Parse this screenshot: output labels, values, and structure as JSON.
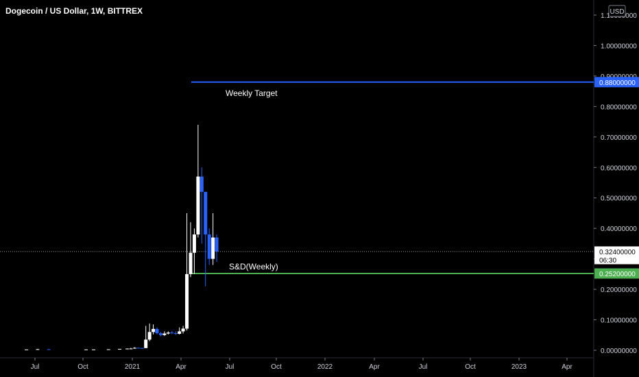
{
  "header": {
    "symbol_title": "Dogecoin / US Dollar, 1W, BITTREX",
    "currency_badge": "USD"
  },
  "countdown": "06:30",
  "chart_data": {
    "type": "candlestick",
    "y_axis": {
      "min": 0.0,
      "max": 1.1,
      "tick_labels": [
        "0.00000000",
        "0.10000000",
        "0.20000000",
        "0.30000000",
        "0.40000000",
        "0.50000000",
        "0.60000000",
        "0.70000000",
        "0.80000000",
        "0.90000000",
        "1.00000000",
        "1.10000000"
      ],
      "tick_values": [
        0,
        0.1,
        0.2,
        0.3,
        0.4,
        0.5,
        0.6,
        0.7,
        0.8,
        0.9,
        1.0,
        1.1
      ]
    },
    "x_axis": {
      "tick_labels": [
        "Jul",
        "Oct",
        "2021",
        "Apr",
        "Jul",
        "Oct",
        "2022",
        "Apr",
        "Jul",
        "Oct",
        "2023",
        "Apr"
      ]
    },
    "price_tags": [
      {
        "label": "0.88000000",
        "value": 0.88,
        "color": "#2962ff"
      },
      {
        "label": "0.32400000",
        "value": 0.324,
        "color": "#ffffff"
      },
      {
        "label": "0.25200000",
        "value": 0.252,
        "color": "#4caf50"
      }
    ],
    "levels": [
      {
        "value": 0.88,
        "label": "Weekly Target",
        "color": "#2962ff"
      },
      {
        "value": 0.252,
        "label": "S&D(Weekly)",
        "color": "#4caf50"
      }
    ],
    "last_price": 0.324,
    "candles": [
      {
        "t": "2020-06-15",
        "o": 0.0025,
        "h": 0.0026,
        "l": 0.0024,
        "c": 0.0025
      },
      {
        "t": "2020-07-06",
        "o": 0.0025,
        "h": 0.0045,
        "l": 0.0024,
        "c": 0.0035
      },
      {
        "t": "2020-07-27",
        "o": 0.0033,
        "h": 0.0036,
        "l": 0.003,
        "c": 0.0032
      },
      {
        "t": "2020-10-05",
        "o": 0.0026,
        "h": 0.0028,
        "l": 0.0025,
        "c": 0.0026
      },
      {
        "t": "2020-10-19",
        "o": 0.0026,
        "h": 0.0027,
        "l": 0.0025,
        "c": 0.0026
      },
      {
        "t": "2020-11-16",
        "o": 0.0028,
        "h": 0.0034,
        "l": 0.0027,
        "c": 0.0032
      },
      {
        "t": "2020-12-07",
        "o": 0.0034,
        "h": 0.0042,
        "l": 0.0032,
        "c": 0.0045
      },
      {
        "t": "2020-12-21",
        "o": 0.0045,
        "h": 0.006,
        "l": 0.0043,
        "c": 0.0055
      },
      {
        "t": "2020-12-28",
        "o": 0.0046,
        "h": 0.008,
        "l": 0.0045,
        "c": 0.0057
      },
      {
        "t": "2021-01-04",
        "o": 0.0057,
        "h": 0.01,
        "l": 0.005,
        "c": 0.008
      },
      {
        "t": "2021-01-11",
        "o": 0.008,
        "h": 0.009,
        "l": 0.0065,
        "c": 0.0075
      },
      {
        "t": "2021-01-18",
        "o": 0.0075,
        "h": 0.008,
        "l": 0.0068,
        "c": 0.0072
      },
      {
        "t": "2021-01-25",
        "o": 0.0072,
        "h": 0.08,
        "l": 0.007,
        "c": 0.035
      },
      {
        "t": "2021-02-01",
        "o": 0.035,
        "h": 0.088,
        "l": 0.03,
        "c": 0.06
      },
      {
        "t": "2021-02-08",
        "o": 0.06,
        "h": 0.085,
        "l": 0.052,
        "c": 0.07
      },
      {
        "t": "2021-02-15",
        "o": 0.07,
        "h": 0.075,
        "l": 0.052,
        "c": 0.056
      },
      {
        "t": "2021-02-22",
        "o": 0.056,
        "h": 0.06,
        "l": 0.046,
        "c": 0.05
      },
      {
        "t": "2021-03-01",
        "o": 0.05,
        "h": 0.062,
        "l": 0.047,
        "c": 0.055
      },
      {
        "t": "2021-03-08",
        "o": 0.055,
        "h": 0.062,
        "l": 0.052,
        "c": 0.058
      },
      {
        "t": "2021-03-15",
        "o": 0.058,
        "h": 0.063,
        "l": 0.053,
        "c": 0.056
      },
      {
        "t": "2021-03-22",
        "o": 0.056,
        "h": 0.062,
        "l": 0.05,
        "c": 0.054
      },
      {
        "t": "2021-03-29",
        "o": 0.054,
        "h": 0.075,
        "l": 0.052,
        "c": 0.062
      },
      {
        "t": "2021-04-05",
        "o": 0.062,
        "h": 0.08,
        "l": 0.055,
        "c": 0.071
      },
      {
        "t": "2021-04-12",
        "o": 0.071,
        "h": 0.45,
        "l": 0.065,
        "c": 0.25
      },
      {
        "t": "2021-04-19",
        "o": 0.25,
        "h": 0.42,
        "l": 0.24,
        "c": 0.32
      },
      {
        "t": "2021-04-26",
        "o": 0.32,
        "h": 0.4,
        "l": 0.25,
        "c": 0.38
      },
      {
        "t": "2021-05-03",
        "o": 0.38,
        "h": 0.74,
        "l": 0.37,
        "c": 0.57
      },
      {
        "t": "2021-05-10",
        "o": 0.57,
        "h": 0.6,
        "l": 0.35,
        "c": 0.52
      },
      {
        "t": "2021-05-17",
        "o": 0.52,
        "h": 0.51,
        "l": 0.21,
        "c": 0.38
      },
      {
        "t": "2021-05-24",
        "o": 0.38,
        "h": 0.4,
        "l": 0.28,
        "c": 0.3
      },
      {
        "t": "2021-05-31",
        "o": 0.3,
        "h": 0.45,
        "l": 0.28,
        "c": 0.37
      },
      {
        "t": "2021-06-07",
        "o": 0.37,
        "h": 0.38,
        "l": 0.29,
        "c": 0.324
      }
    ]
  }
}
